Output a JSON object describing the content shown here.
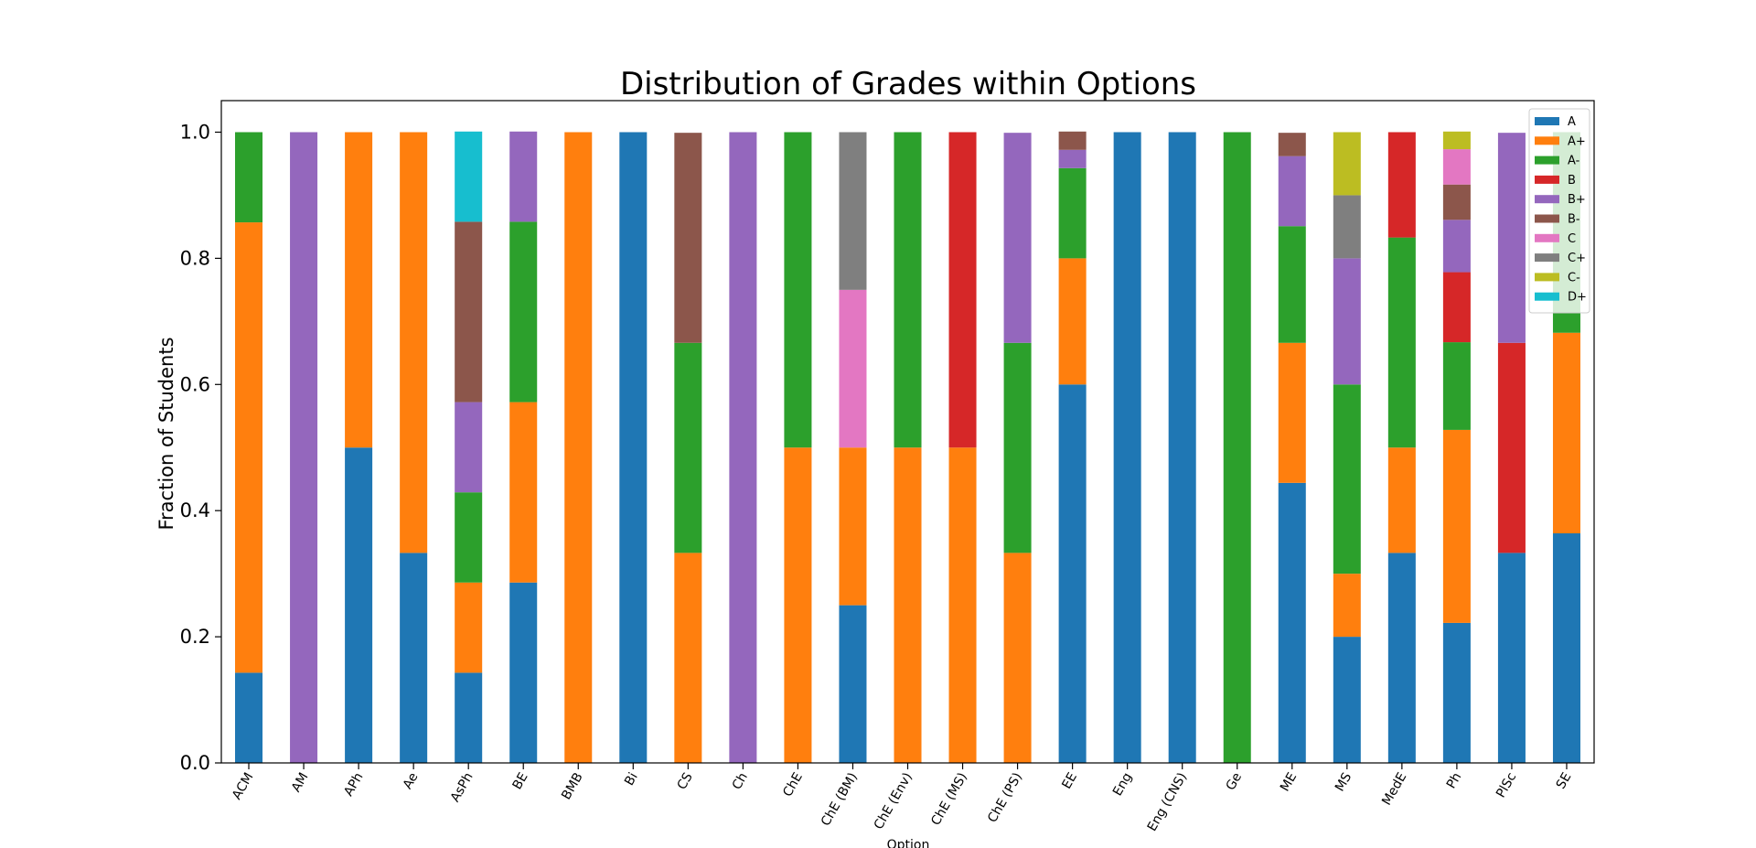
{
  "chart_data": {
    "type": "bar",
    "stacked": true,
    "title": "Distribution of Grades within Options",
    "xlabel": "Option",
    "ylabel": "Fraction of Students",
    "ylim": [
      0,
      1.05
    ],
    "yticks": [
      0.0,
      0.2,
      0.4,
      0.6,
      0.8,
      1.0
    ],
    "ytick_labels": [
      "0.0",
      "0.2",
      "0.4",
      "0.6",
      "0.8",
      "1.0"
    ],
    "legend_position": "top-right",
    "categories": [
      "ACM",
      "AM",
      "APh",
      "Ae",
      "AsPh",
      "BE",
      "BMB",
      "Bi",
      "CS",
      "Ch",
      "ChE",
      "ChE (BM)",
      "ChE (Env)",
      "ChE (MS)",
      "ChE (PS)",
      "EE",
      "Eng",
      "Eng (CNS)",
      "Ge",
      "ME",
      "MS",
      "MedE",
      "Ph",
      "PlSc",
      "SE"
    ],
    "series": [
      {
        "name": "A",
        "color": "#1f77b4",
        "values": [
          0.143,
          0,
          0.5,
          0.333,
          0.143,
          0.286,
          0,
          1.0,
          0,
          0,
          0,
          0.25,
          0,
          0,
          0,
          0.6,
          1.0,
          1.0,
          0,
          0.444,
          0.2,
          0.333,
          0.222,
          0.333,
          0.364
        ]
      },
      {
        "name": "A+",
        "color": "#ff7f0e",
        "values": [
          0.714,
          0,
          0.5,
          0.667,
          0.143,
          0.286,
          1.0,
          0,
          0.333,
          0,
          0.5,
          0.25,
          0.5,
          0.5,
          0.333,
          0.2,
          0,
          0,
          0,
          0.222,
          0.1,
          0.167,
          0.306,
          0,
          0.318
        ]
      },
      {
        "name": "A-",
        "color": "#2ca02c",
        "values": [
          0.143,
          0,
          0,
          0,
          0.143,
          0.286,
          0,
          0,
          0.333,
          0,
          0.5,
          0,
          0.5,
          0,
          0.333,
          0.143,
          0,
          0,
          1.0,
          0.185,
          0.3,
          0.333,
          0.139,
          0,
          0.318
        ]
      },
      {
        "name": "B",
        "color": "#d62728",
        "values": [
          0,
          0,
          0,
          0,
          0,
          0,
          0,
          0,
          0,
          0,
          0,
          0,
          0,
          0.5,
          0,
          0,
          0,
          0,
          0,
          0,
          0,
          0.167,
          0.111,
          0.333,
          0
        ]
      },
      {
        "name": "B+",
        "color": "#9467bd",
        "values": [
          0,
          1.0,
          0,
          0,
          0.143,
          0.143,
          0,
          0,
          0,
          1.0,
          0,
          0,
          0,
          0,
          0.333,
          0.029,
          0,
          0,
          0,
          0.111,
          0.2,
          0,
          0.083,
          0.333,
          0
        ]
      },
      {
        "name": "B-",
        "color": "#8c564b",
        "values": [
          0,
          0,
          0,
          0,
          0.286,
          0,
          0,
          0,
          0.333,
          0,
          0,
          0,
          0,
          0,
          0,
          0.029,
          0,
          0,
          0,
          0.037,
          0,
          0,
          0.056,
          0,
          0
        ]
      },
      {
        "name": "C",
        "color": "#e377c2",
        "values": [
          0,
          0,
          0,
          0,
          0,
          0,
          0,
          0,
          0,
          0,
          0,
          0.25,
          0,
          0,
          0,
          0,
          0,
          0,
          0,
          0,
          0,
          0,
          0.056,
          0,
          0
        ]
      },
      {
        "name": "C+",
        "color": "#7f7f7f",
        "values": [
          0,
          0,
          0,
          0,
          0,
          0,
          0,
          0,
          0,
          0,
          0,
          0.25,
          0,
          0,
          0,
          0,
          0,
          0,
          0,
          0,
          0.1,
          0,
          0,
          0,
          0
        ]
      },
      {
        "name": "C-",
        "color": "#bcbd22",
        "values": [
          0,
          0,
          0,
          0,
          0,
          0,
          0,
          0,
          0,
          0,
          0,
          0,
          0,
          0,
          0,
          0,
          0,
          0,
          0,
          0,
          0.1,
          0,
          0.028,
          0,
          0
        ]
      },
      {
        "name": "D+",
        "color": "#17becf",
        "values": [
          0,
          0,
          0,
          0,
          0.143,
          0,
          0,
          0,
          0,
          0,
          0,
          0,
          0,
          0,
          0,
          0,
          0,
          0,
          0,
          0,
          0,
          0,
          0,
          0,
          0
        ]
      }
    ]
  }
}
